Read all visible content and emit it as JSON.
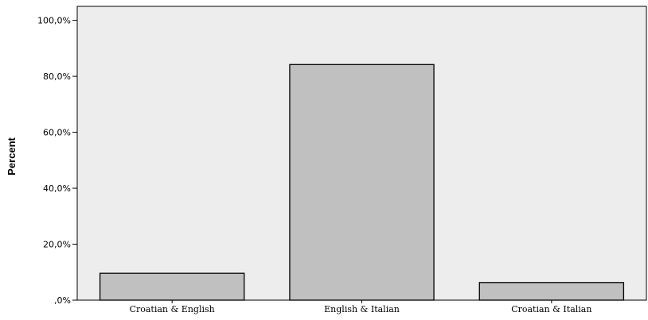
{
  "chart_data": {
    "type": "bar",
    "categories": [
      "Croatian & English",
      "English & Italian",
      "Croatian & Italian"
    ],
    "values": [
      9.6,
      84.2,
      6.3
    ],
    "ylabel": "Percent",
    "xlabel": "",
    "ylim": [
      0,
      105
    ],
    "yticks": [
      0,
      20,
      40,
      60,
      80,
      100
    ],
    "ytick_labels": [
      ",0%",
      "20,0%",
      "40,0%",
      "60,0%",
      "80,0%",
      "100,0%"
    ],
    "grid": false,
    "legend": "none",
    "colors": {
      "plot_background": "#ededed",
      "bar_fill": "#c0c0c0",
      "bar_stroke": "#000000"
    }
  }
}
